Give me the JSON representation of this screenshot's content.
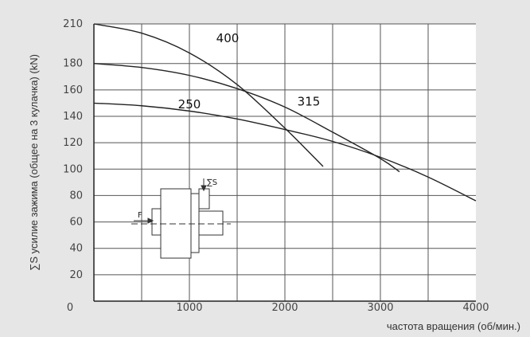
{
  "chart_data": {
    "type": "line",
    "title": "",
    "xlabel": "частота вращения (об/мин.)",
    "ylabel": "∑S усилие зажима (общее на 3 кулачка) (kN)",
    "xlim": [
      0,
      4000
    ],
    "ylim": [
      0,
      210
    ],
    "x_ticks": [
      "0",
      "1000",
      "2000",
      "3000",
      "4000"
    ],
    "y_ticks": [
      "20",
      "40",
      "60",
      "80",
      "100",
      "120",
      "140",
      "160",
      "180",
      "210"
    ],
    "grid": true,
    "series": [
      {
        "name": "400",
        "x": [
          0,
          500,
          1000,
          1500,
          2000,
          2400
        ],
        "y": [
          210,
          203,
          188,
          164,
          131,
          102
        ]
      },
      {
        "name": "315",
        "x": [
          0,
          500,
          1000,
          1500,
          2000,
          2500,
          3000,
          3200
        ],
        "y": [
          180,
          177,
          171,
          161,
          147,
          128,
          108,
          98
        ]
      },
      {
        "name": "250",
        "x": [
          0,
          500,
          1000,
          1500,
          2000,
          2500,
          3000,
          3500,
          4000
        ],
        "y": [
          150,
          148,
          144,
          138,
          130,
          121,
          109,
          94,
          76
        ]
      }
    ],
    "inset_labels": {
      "force_f": "F",
      "sum_s": "∑S"
    }
  }
}
